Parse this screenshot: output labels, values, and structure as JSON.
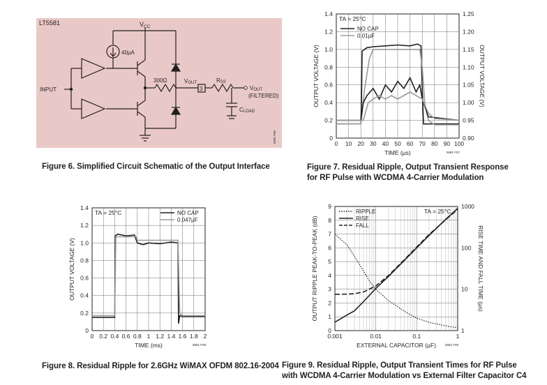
{
  "figures": {
    "fig6": {
      "caption": "Figure 6. Simplified Circuit Schematic of the Output Interface",
      "part": "LT5581",
      "vcc": "V",
      "vcc_sub": "CC",
      "current_source": "40µA",
      "resistor": "300Ω",
      "vout": "V",
      "vout_sub": "OUT",
      "pin": "3",
      "rss": "R",
      "rss_sub": "SS",
      "vout_filtered": "V",
      "vout_filtered_sub": "OUT",
      "filtered": "(FILTERED)",
      "cload": "C",
      "cload_sub": "LOAD",
      "input": "INPUT",
      "code": "5581 F06",
      "colors": {
        "box": "#e9c9c7",
        "wire": "#231f20"
      }
    },
    "fig7": {
      "caption_line1": "Figure 7. Residual Ripple, Output Transient Response",
      "caption_line2": "for RF Pulse with WCDMA 4-Carrier Modulation",
      "code": "5581 F07"
    },
    "fig8": {
      "caption": "Figure 8. Residual Ripple for 2.6GHz WiMAX OFDM 802.16-2004",
      "code": "5581 F08"
    },
    "fig9": {
      "caption_line1": "Figure 9. Residual Ripple, Output Transient Times for RF Pulse",
      "caption_line2": "with WCDMA 4-Carrier Modulation vs External Filter Capacitor C4",
      "code": "5581 F09"
    }
  },
  "chart_data": [
    {
      "id": "fig7",
      "type": "line",
      "title": "",
      "annotation": "TA = 25°C",
      "xlabel": "TIME (µs)",
      "ylabel": "OUTPUT VOLTAGE (V)",
      "y2label": "OUTPUT VOLTAGE (V)",
      "xlim": [
        0,
        100
      ],
      "ylim": [
        0,
        1.4
      ],
      "y2lim": [
        0.9,
        1.25
      ],
      "xticks": [
        "0",
        "10",
        "20",
        "30",
        "40",
        "50",
        "60",
        "70",
        "80",
        "90",
        "100"
      ],
      "yticks": [
        "0",
        "0.2",
        "0.4",
        "0.6",
        "0.8",
        "1.0",
        "1.2",
        "1.4"
      ],
      "y2ticks": [
        "0.90",
        "0.95",
        "1.00",
        "1.05",
        "1.10",
        "1.15",
        "1.20",
        "1.25"
      ],
      "grid": true,
      "legend_position": "top-left",
      "series": [
        {
          "name": "NO CAP",
          "color": "#231f20",
          "axis": "left",
          "x": [
            0,
            20,
            20.5,
            21,
            25,
            30,
            40,
            50,
            60,
            66,
            69,
            70,
            71,
            100
          ],
          "y": [
            0.16,
            0.16,
            0.4,
            0.98,
            1.02,
            1.03,
            1.04,
            1.05,
            1.04,
            1.06,
            1.04,
            0.55,
            0.16,
            0.16
          ]
        },
        {
          "name": "0.01µF",
          "color": "#9a9a9a",
          "axis": "left",
          "x": [
            0,
            20,
            23,
            27,
            30,
            40,
            50,
            60,
            68,
            70,
            72,
            75,
            80,
            100
          ],
          "y": [
            0.16,
            0.16,
            0.55,
            0.9,
            1.0,
            1.0,
            1.0,
            1.0,
            1.0,
            0.8,
            0.4,
            0.2,
            0.15,
            0.15
          ]
        },
        {
          "name": "NO CAP",
          "color": "#231f20",
          "axis": "right",
          "x": [
            0,
            20,
            22,
            25,
            30,
            35,
            40,
            45,
            50,
            55,
            60,
            65,
            68,
            70,
            75,
            100
          ],
          "y": [
            0.95,
            0.95,
            1.0,
            1.02,
            1.04,
            1.01,
            1.05,
            1.03,
            1.06,
            1.04,
            1.07,
            1.03,
            1.05,
            1.01,
            0.96,
            0.95
          ]
        },
        {
          "name": "0.01µF",
          "color": "#9a9a9a",
          "axis": "right",
          "x": [
            0,
            22,
            26,
            30,
            35,
            40,
            45,
            50,
            55,
            60,
            65,
            70,
            75,
            80,
            100
          ],
          "y": [
            0.95,
            0.95,
            1.0,
            1.01,
            1.02,
            1.01,
            1.02,
            1.01,
            1.02,
            1.03,
            1.02,
            1.01,
            0.97,
            0.955,
            0.95
          ]
        }
      ]
    },
    {
      "id": "fig8",
      "type": "line",
      "title": "",
      "annotation": "TA = 25°C",
      "xlabel": "TIME (ms)",
      "ylabel": "OUTPUT VOLTAGE (V)",
      "xlim": [
        0,
        2
      ],
      "ylim": [
        0,
        1.4
      ],
      "xticks": [
        "0",
        "0.2",
        "0.4",
        "0.6",
        "0.8",
        "1",
        "1.2",
        "1.4",
        "1.6",
        "1.8",
        "2"
      ],
      "yticks": [
        "0",
        "0.2",
        "0.4",
        "0.6",
        "0.8",
        "1.0",
        "1.2",
        "1.4"
      ],
      "grid": true,
      "legend_position": "top-right",
      "series": [
        {
          "name": "NO CAP",
          "color": "#231f20",
          "x": [
            0,
            0.4,
            0.41,
            0.45,
            0.6,
            0.75,
            0.8,
            0.9,
            1.0,
            1.2,
            1.4,
            1.52,
            1.53,
            1.55,
            1.6,
            2.0
          ],
          "y": [
            0.15,
            0.15,
            1.08,
            1.1,
            1.08,
            1.09,
            1.0,
            0.98,
            1.0,
            0.99,
            1.01,
            1.0,
            0.08,
            0.17,
            0.16,
            0.16
          ]
        },
        {
          "name": "0.047µF",
          "color": "#9a9a9a",
          "x": [
            0,
            0.4,
            0.42,
            0.6,
            0.78,
            0.8,
            1.0,
            1.2,
            1.52,
            1.55,
            1.6,
            2.0
          ],
          "y": [
            0.17,
            0.17,
            1.07,
            1.07,
            1.07,
            1.03,
            1.03,
            1.03,
            1.03,
            0.2,
            0.17,
            0.17
          ]
        }
      ]
    },
    {
      "id": "fig9",
      "type": "line",
      "title": "",
      "annotation": "TA = 25°C",
      "xlabel": "EXTERNAL CAPACITOR (µF)",
      "ylabel": "OUTPUT RIPPLE PEAK-TO-PEAK (dB)",
      "y2label": "RISE TIME AND FALL TIME (µs)",
      "xscale": "log",
      "xlim": [
        0.001,
        1
      ],
      "ylim": [
        0,
        9
      ],
      "y2scale": "log",
      "y2lim": [
        1,
        1000
      ],
      "xticks": [
        "0.001",
        "0.01",
        "0.1",
        "1"
      ],
      "yticks": [
        "0",
        "1",
        "2",
        "3",
        "4",
        "5",
        "6",
        "7",
        "8",
        "9"
      ],
      "y2ticks": [
        "1",
        "10",
        "100",
        "1000"
      ],
      "grid": true,
      "legend_position": "top-left",
      "series": [
        {
          "name": "RIPPLE",
          "style": "dotted",
          "axis": "left",
          "x": [
            0.001,
            0.002,
            0.004,
            0.007,
            0.01,
            0.02,
            0.05,
            0.1,
            0.2,
            0.5,
            1.0
          ],
          "y": [
            7.0,
            6.2,
            4.8,
            3.6,
            3.0,
            2.2,
            1.4,
            0.9,
            0.6,
            0.35,
            0.2
          ]
        },
        {
          "name": "RISE",
          "style": "solid",
          "axis": "right",
          "x": [
            0.001,
            0.002,
            0.003,
            0.005,
            0.01,
            0.02,
            0.05,
            0.1,
            0.2,
            0.5,
            1.0
          ],
          "y": [
            1.6,
            2.4,
            3.0,
            5.0,
            10.5,
            20,
            50,
            100,
            200,
            480,
            900
          ]
        },
        {
          "name": "FALL",
          "style": "dashed",
          "axis": "right",
          "x": [
            0.001,
            0.002,
            0.003,
            0.005,
            0.01,
            0.02,
            0.05,
            0.1,
            0.2,
            0.5,
            1.0
          ],
          "y": [
            7.5,
            7.6,
            7.8,
            8.6,
            12,
            21,
            52,
            105,
            210,
            470,
            850
          ]
        }
      ]
    }
  ]
}
